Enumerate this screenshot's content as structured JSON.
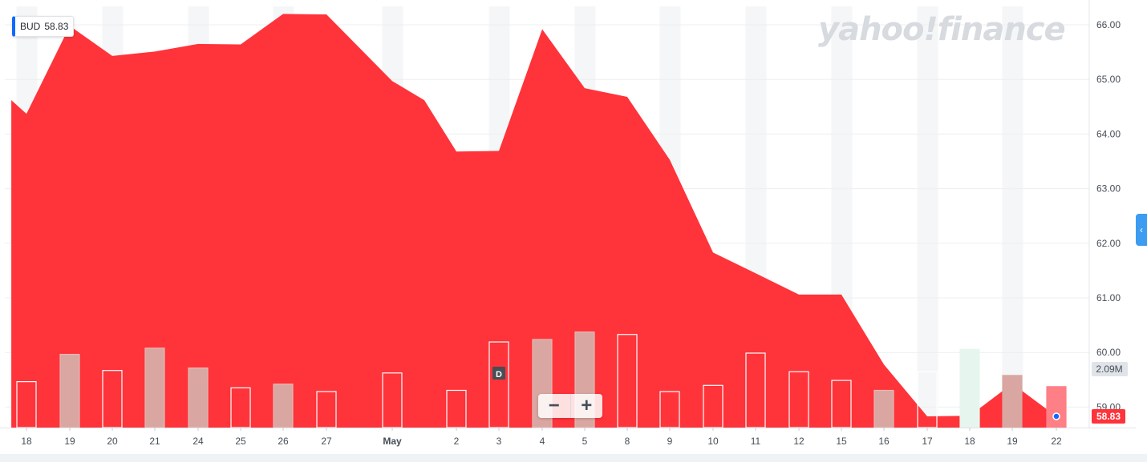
{
  "ticker": {
    "symbol": "BUD",
    "price": "58.83"
  },
  "watermark": "yahoo!finance",
  "event_marker": "D",
  "volume_badge": "2.09M",
  "last_price_badge": "58.83",
  "zoom": {
    "minus": "−",
    "plus": "+"
  },
  "colors": {
    "area": "#ff333a",
    "up_volume": "#e6f6ee",
    "down_volume": "#ffd1d3",
    "badge_red": "#ff333a",
    "grid_band": "#f5f6f7"
  },
  "chart_data": {
    "type": "area",
    "x_labels": [
      "18",
      "19",
      "20",
      "21",
      "24",
      "25",
      "26",
      "27",
      "May",
      "2",
      "3",
      "4",
      "5",
      "8",
      "9",
      "10",
      "11",
      "12",
      "15",
      "16",
      "17",
      "18",
      "19",
      "22"
    ],
    "y_axis_ticks": [
      "66.00",
      "65.00",
      "64.00",
      "63.00",
      "62.00",
      "61.00",
      "60.00",
      "59.00"
    ],
    "ylim": [
      58.6,
      66.2
    ],
    "price_points": [
      {
        "x": 17.65,
        "y": 64.62
      },
      {
        "x": 18,
        "y": 64.37
      },
      {
        "x": 19,
        "y": 65.98
      },
      {
        "x": 20,
        "y": 65.43
      },
      {
        "x": 21,
        "y": 65.51
      },
      {
        "x": 24,
        "y": 65.65
      },
      {
        "x": 25,
        "y": 65.64
      },
      {
        "x": 26,
        "y": 66.2
      },
      {
        "x": 27,
        "y": 66.19
      },
      {
        "x": 28,
        "y": 64.97
      },
      {
        "x": 29,
        "y": 64.62
      },
      {
        "x": 30,
        "y": 63.68
      },
      {
        "x": 31,
        "y": 63.69
      },
      {
        "x": 32,
        "y": 65.92
      },
      {
        "x": 33,
        "y": 64.84
      },
      {
        "x": 34,
        "y": 64.68
      },
      {
        "x": 35,
        "y": 63.53
      },
      {
        "x": 36,
        "y": 61.83
      },
      {
        "x": 37,
        "y": 61.45
      },
      {
        "x": 38,
        "y": 61.06
      },
      {
        "x": 39,
        "y": 61.06
      },
      {
        "x": 40,
        "y": 59.78
      },
      {
        "x": 41,
        "y": 58.83
      },
      {
        "x": 42,
        "y": 58.84
      },
      {
        "x": 43,
        "y": 59.43
      },
      {
        "x": 44,
        "y": 58.83
      }
    ],
    "volume_bars": [
      {
        "label": "18",
        "rel": 0.37,
        "fill": false
      },
      {
        "label": "19",
        "rel": 0.59,
        "fill": true
      },
      {
        "label": "20",
        "rel": 0.46,
        "fill": false
      },
      {
        "label": "21",
        "rel": 0.64,
        "fill": true
      },
      {
        "label": "24",
        "rel": 0.48,
        "fill": true
      },
      {
        "label": "25",
        "rel": 0.32,
        "fill": false
      },
      {
        "label": "26",
        "rel": 0.35,
        "fill": true
      },
      {
        "label": "27",
        "rel": 0.29,
        "fill": false
      },
      {
        "label": "May",
        "rel": 0.44,
        "fill": false
      },
      {
        "label": "2",
        "rel": 0.3,
        "fill": false
      },
      {
        "label": "3",
        "rel": 0.69,
        "fill": false
      },
      {
        "label": "4",
        "rel": 0.71,
        "fill": true
      },
      {
        "label": "5",
        "rel": 0.77,
        "fill": true
      },
      {
        "label": "8",
        "rel": 0.75,
        "fill": false
      },
      {
        "label": "9",
        "rel": 0.29,
        "fill": false
      },
      {
        "label": "10",
        "rel": 0.34,
        "fill": false
      },
      {
        "label": "11",
        "rel": 0.6,
        "fill": false
      },
      {
        "label": "12",
        "rel": 0.45,
        "fill": false
      },
      {
        "label": "15",
        "rel": 0.38,
        "fill": false
      },
      {
        "label": "16",
        "rel": 0.3,
        "fill": true
      },
      {
        "label": "17",
        "rel": 0.45,
        "fill": false
      },
      {
        "label": "18",
        "rel": 0.63,
        "fill": "down"
      },
      {
        "label": "19",
        "rel": 0.42,
        "fill": "up"
      },
      {
        "label": "22",
        "rel": 0.33,
        "fill": "up"
      }
    ]
  }
}
